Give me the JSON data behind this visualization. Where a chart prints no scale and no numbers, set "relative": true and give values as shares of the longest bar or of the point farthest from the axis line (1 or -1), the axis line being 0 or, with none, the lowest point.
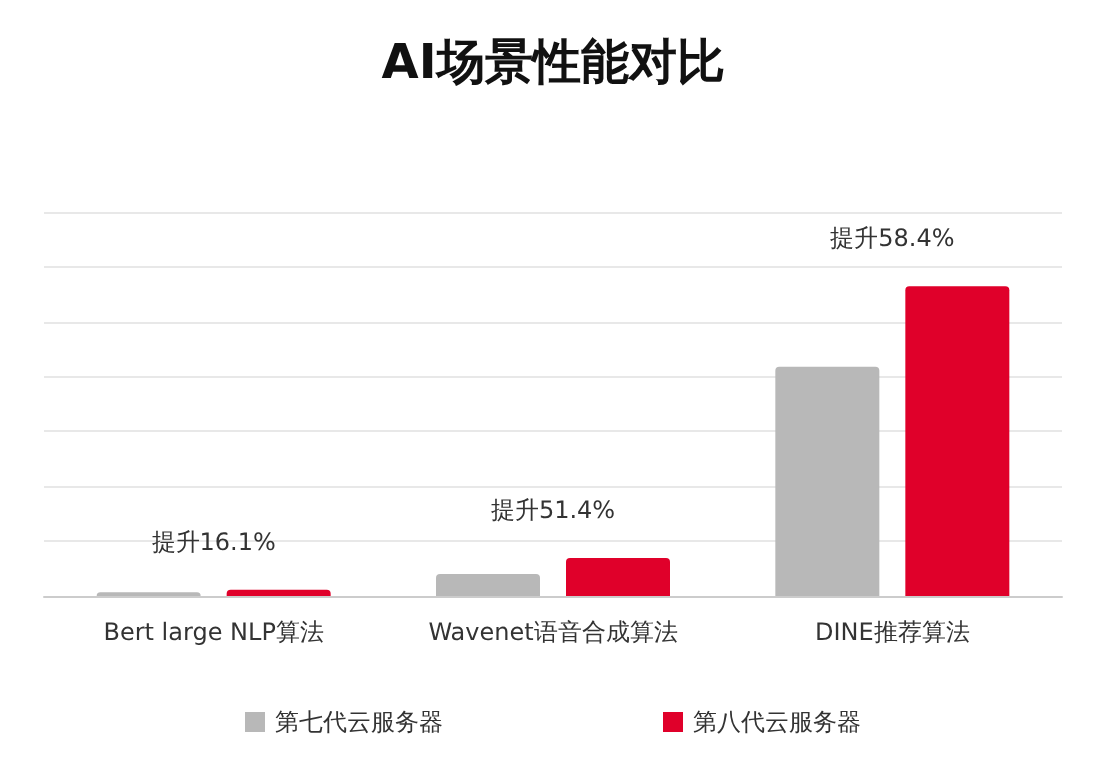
{
  "chart_data": {
    "type": "bar",
    "title": "AI场景性能对比",
    "relative": true,
    "grid": "y",
    "legend": "bottom",
    "categories": [
      "Bert large NLP算法",
      "Wavenet语音合成算法",
      "DINE推荐算法"
    ],
    "series": [
      {
        "name": "第七代云服务器",
        "color": "#b8b8b8",
        "values": [
          0.012,
          0.071,
          0.74
        ]
      },
      {
        "name": "第八代云服务器",
        "color": "#e0002a",
        "values": [
          0.02,
          0.123,
          1
        ]
      }
    ],
    "annotations": [
      "提升16.1%",
      "提升51.4%",
      "提升58.4%"
    ]
  }
}
